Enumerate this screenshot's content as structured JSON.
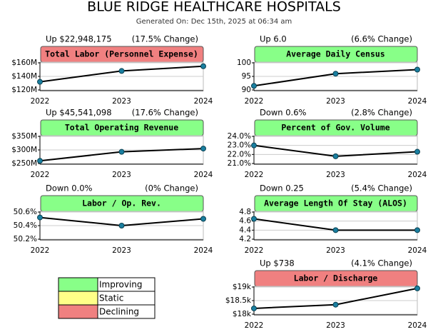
{
  "header": {
    "title": "BLUE RIDGE HEALTHCARE HOSPITALS",
    "generated": "Generated On: Dec 15th, 2025 at 06:34 am"
  },
  "chart_data": [
    {
      "type": "line",
      "title": "Total Labor (Personnel Expense)",
      "change": "Up $22,948,175",
      "change_pct": "(17.5% Change)",
      "title_color": "#f08080",
      "color": "#000000",
      "marker_color": "#1a7fa0",
      "categories": [
        "2022",
        "2023",
        "2024"
      ],
      "values": [
        132000000,
        148000000,
        155000000
      ],
      "ylim": [
        120000000,
        160000000
      ],
      "yticks": [
        {
          "value": 120000000,
          "label": "$120M"
        },
        {
          "value": 140000000,
          "label": "$140M"
        },
        {
          "value": 160000000,
          "label": "$160M"
        }
      ],
      "grid": true
    },
    {
      "type": "line",
      "title": "Average Daily Census",
      "change": "Up 6.0",
      "change_pct": "(6.6% Change)",
      "title_color": "#88ff88",
      "color": "#000000",
      "marker_color": "#1a7fa0",
      "categories": [
        "2022",
        "2023",
        "2024"
      ],
      "values": [
        91.5,
        96,
        97.5
      ],
      "ylim": [
        90,
        100
      ],
      "yticks": [
        90,
        95,
        100
      ],
      "grid": true
    },
    {
      "type": "line",
      "title": "Total Operating Revenue",
      "change": "Up $45,541,098",
      "change_pct": "(17.6% Change)",
      "title_color": "#88ff88",
      "color": "#000000",
      "marker_color": "#1a7fa0",
      "categories": [
        "2022",
        "2023",
        "2024"
      ],
      "values": [
        260000000,
        293000000,
        305000000
      ],
      "ylim": [
        250000000,
        350000000
      ],
      "yticks": [
        {
          "value": 250000000,
          "label": "$250M"
        },
        {
          "value": 300000000,
          "label": "$300M"
        },
        {
          "value": 350000000,
          "label": "$350M"
        }
      ],
      "grid": true
    },
    {
      "type": "line",
      "title": "Percent of Gov. Volume",
      "change": "Down 0.6%",
      "change_pct": "(2.8% Change)",
      "title_color": "#88ff88",
      "color": "#000000",
      "marker_color": "#1a7fa0",
      "categories": [
        "2022",
        "2023",
        "2024"
      ],
      "values": [
        23.0,
        21.8,
        22.3
      ],
      "ylim": [
        21,
        24
      ],
      "yticks": [
        {
          "value": 21,
          "label": "21.0%"
        },
        {
          "value": 22,
          "label": "22.0%"
        },
        {
          "value": 23,
          "label": "23.0%"
        },
        {
          "value": 24,
          "label": "24.0%"
        }
      ],
      "grid": true
    },
    {
      "type": "line",
      "title": "Labor / Op. Rev.",
      "change": "Down 0.0%",
      "change_pct": "(0% Change)",
      "title_color": "#88ff88",
      "color": "#000000",
      "marker_color": "#1a7fa0",
      "categories": [
        "2022",
        "2023",
        "2024"
      ],
      "values": [
        50.52,
        50.4,
        50.5
      ],
      "ylim": [
        50.2,
        50.6
      ],
      "yticks": [
        {
          "value": 50.2,
          "label": "50.2%"
        },
        {
          "value": 50.4,
          "label": "50.4%"
        },
        {
          "value": 50.6,
          "label": "50.6%"
        }
      ],
      "grid": true
    },
    {
      "type": "line",
      "title": "Average Length Of Stay (ALOS)",
      "change": "Down 0.25",
      "change_pct": "(5.4% Change)",
      "title_color": "#88ff88",
      "color": "#000000",
      "marker_color": "#1a7fa0",
      "categories": [
        "2022",
        "2023",
        "2024"
      ],
      "values": [
        4.65,
        4.4,
        4.4
      ],
      "ylim": [
        4.2,
        4.8
      ],
      "yticks": [
        4.2,
        4.4,
        4.6,
        4.8
      ],
      "grid": true
    },
    {
      "type": "line",
      "title": "Labor / Discharge",
      "change": "Up $738",
      "change_pct": "(4.1% Change)",
      "title_color": "#f08080",
      "color": "#000000",
      "marker_color": "#1a7fa0",
      "categories": [
        "2022",
        "2023",
        "2024"
      ],
      "values": [
        18212,
        18350,
        18950
      ],
      "ylim": [
        18000,
        19000
      ],
      "yticks": [
        {
          "value": 18000,
          "label": "$18k"
        },
        {
          "value": 18500,
          "label": "$18.5k"
        },
        {
          "value": 19000,
          "label": "$19k"
        }
      ],
      "grid": true
    }
  ],
  "legend": [
    {
      "label": "Improving",
      "color": "#88ff88"
    },
    {
      "label": "Static",
      "color": "#ffff88"
    },
    {
      "label": "Declining",
      "color": "#f08080"
    }
  ]
}
